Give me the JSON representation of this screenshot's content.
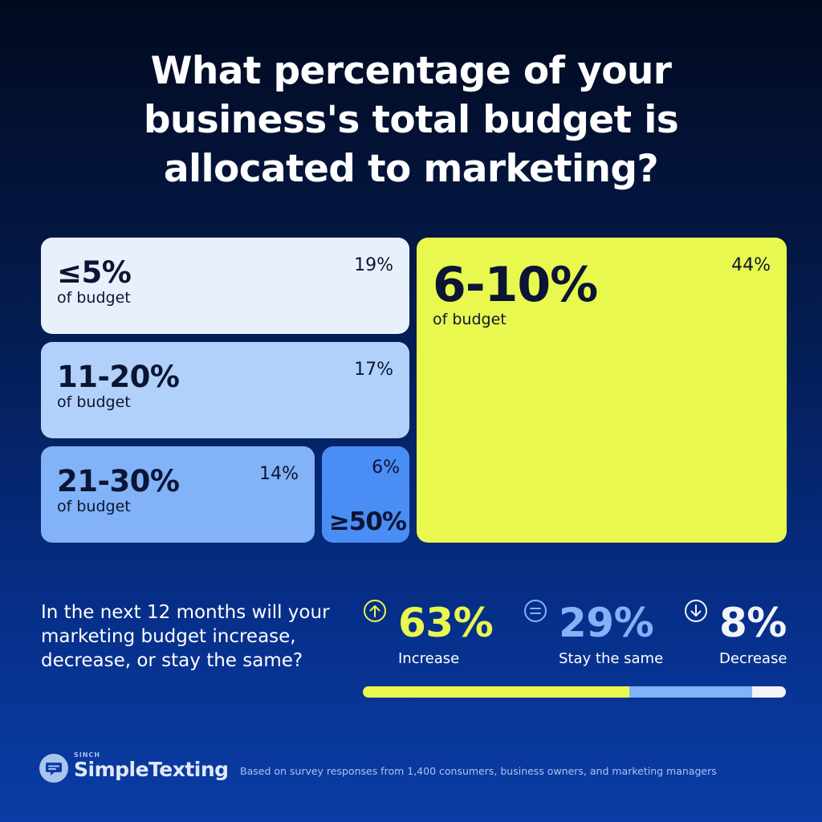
{
  "header": {
    "title_lines": [
      "What percentage of your",
      "business's total budget is",
      "allocated to marketing?"
    ]
  },
  "chart_data": [
    {
      "type": "treemap",
      "unit_label": "of budget",
      "categories": [
        "≤5%",
        "11-20%",
        "21-30%",
        "≥50%",
        "6-10%"
      ],
      "values": [
        19,
        17,
        14,
        6,
        44
      ],
      "value_labels": [
        "19%",
        "17%",
        "14%",
        "6%",
        "44%"
      ],
      "colors": [
        "#e8f0fc",
        "#b2d1fa",
        "#82b2f7",
        "#4a8df5",
        "#e8f84f"
      ]
    },
    {
      "type": "bar",
      "orientation": "stacked-horizontal",
      "question": "In the next 12 months will your marketing budget increase, decrease, or stay the same?",
      "categories": [
        "Increase",
        "Stay the same",
        "Decrease"
      ],
      "values": [
        63,
        29,
        8
      ],
      "value_labels": [
        "63%",
        "29%",
        "8%"
      ],
      "colors": [
        "#e8f84f",
        "#82b2f7",
        "#f2f4f8"
      ],
      "icons": [
        "arrow-up-circle-icon",
        "equals-circle-icon",
        "arrow-down-circle-icon"
      ]
    }
  ],
  "footer": {
    "brand_small": "SINCH",
    "brand": "SimpleTexting",
    "note": "Based on survey responses from 1,400 consumers, business owners, and marketing managers"
  }
}
